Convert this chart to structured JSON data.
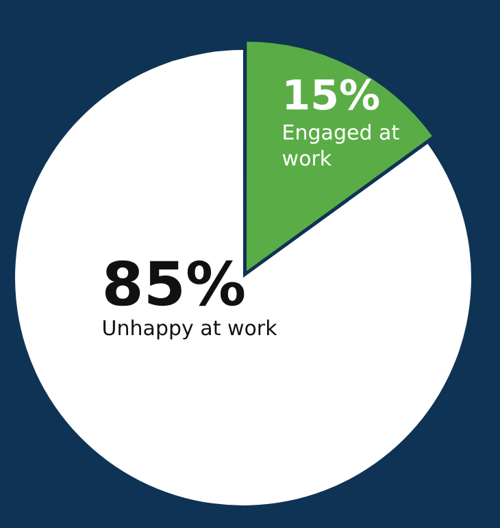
{
  "chart_data": {
    "type": "pie",
    "categories": [
      "Engaged at work",
      "Unhappy at work"
    ],
    "values": [
      15,
      85
    ],
    "colors": [
      "#5aad46",
      "#ffffff"
    ],
    "value_labels": [
      "15%",
      "85%"
    ],
    "legend": false
  }
}
